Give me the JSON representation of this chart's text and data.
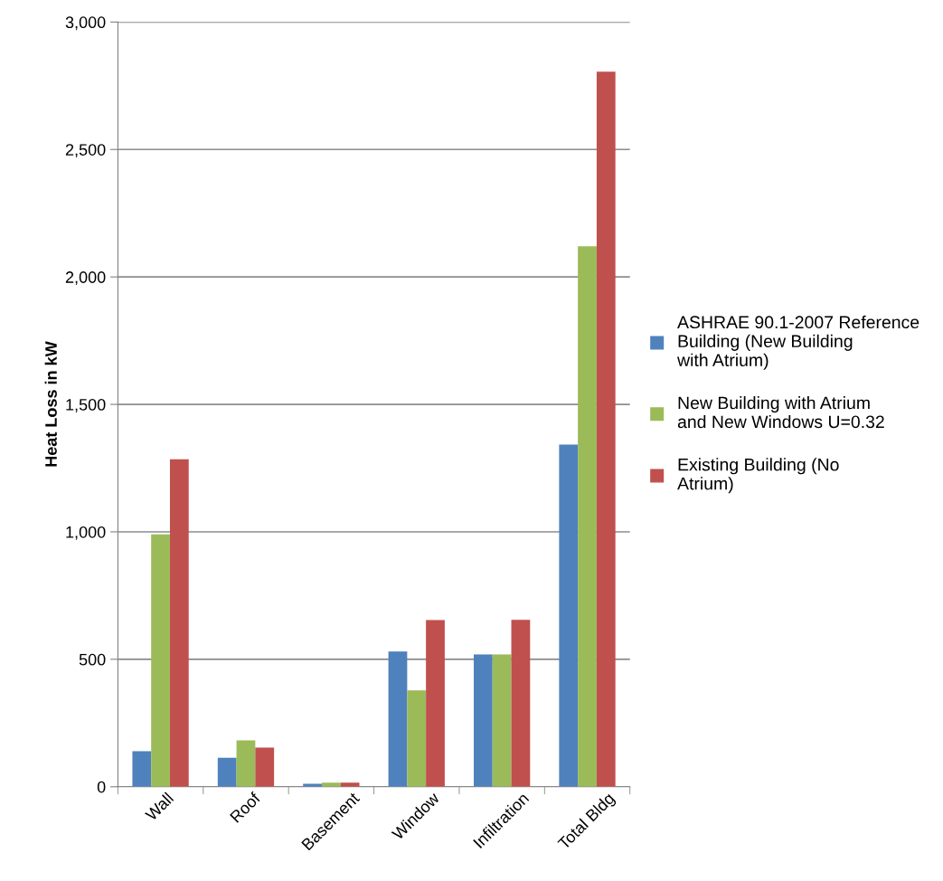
{
  "chart_data": {
    "type": "bar",
    "ylabel": "Heat Loss in kW",
    "categories": [
      "Wall",
      "Roof",
      "Basement",
      "Window",
      "Infiltration",
      "Total Bldg"
    ],
    "series": [
      {
        "name": "ASHRAE 90.1-2007 Reference Building (New Building with Atrium)",
        "color": "#4f81bd",
        "values": [
          139,
          114,
          12,
          531,
          519,
          1342
        ]
      },
      {
        "name": "New Building with Atrium and New Windows U=0.32",
        "color": "#9bbb59",
        "values": [
          990,
          182,
          16,
          378,
          519,
          2120
        ]
      },
      {
        "name": "Existing Building (No Atrium)",
        "color": "#c0504d",
        "values": [
          1285,
          154,
          16,
          654,
          655,
          2805
        ]
      }
    ],
    "ylim": [
      0,
      3000
    ],
    "yticks": [
      {
        "value": 0,
        "label": "0"
      },
      {
        "value": 500,
        "label": "500"
      },
      {
        "value": 1000,
        "label": "1,000"
      },
      {
        "value": 1500,
        "label": "1,500"
      },
      {
        "value": 2000,
        "label": "2,000"
      },
      {
        "value": 2500,
        "label": "2,500"
      },
      {
        "value": 3000,
        "label": "3,000"
      }
    ],
    "grid": "y",
    "legend": "right"
  }
}
